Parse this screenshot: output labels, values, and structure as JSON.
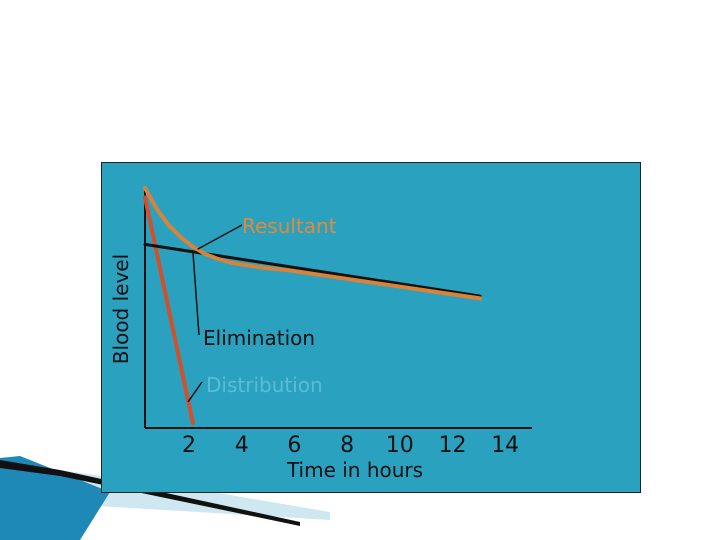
{
  "chart_data": {
    "type": "line",
    "title": "",
    "xlabel": "Time in hours",
    "ylabel": "Blood level",
    "x_ticks": [
      "2",
      "4",
      "6",
      "8",
      "10",
      "12",
      "14"
    ],
    "x_tick_values": [
      2,
      4,
      6,
      8,
      10,
      12,
      14
    ],
    "xlim": [
      0,
      15
    ],
    "ylim": [
      0,
      100
    ],
    "grid": false,
    "legend": "none",
    "series": [
      {
        "name": "Resultant",
        "color": "#d9833a",
        "x": [
          0,
          0.5,
          1,
          1.5,
          2,
          2.5,
          3,
          3.5,
          4,
          5,
          6,
          8,
          10,
          12,
          14
        ],
        "y": [
          100,
          91,
          84,
          79,
          75,
          72,
          70,
          68.5,
          67.5,
          66,
          65,
          62,
          59,
          56,
          53
        ]
      },
      {
        "name": "Elimination",
        "color": "#111111",
        "x": [
          0,
          14
        ],
        "y": [
          76,
          54
        ]
      },
      {
        "name": "Distribution",
        "color": "#d2502a",
        "x": [
          0,
          2
        ],
        "y": [
          96,
          0
        ]
      }
    ],
    "annotations": [
      {
        "text": "Resultant",
        "color": "#e08a3a",
        "pointer_to": {
          "series": "Resultant",
          "x": 2.2,
          "y": 74
        }
      },
      {
        "text": "Elimination",
        "color": "#111111",
        "pointer_to": {
          "series": "Elimination",
          "x": 2,
          "y": 73
        }
      },
      {
        "text": "Distribution",
        "color": "#5bbcd9",
        "pointer_to": {
          "series": "Distribution",
          "x": 1.8,
          "y": 9
        }
      }
    ]
  }
}
